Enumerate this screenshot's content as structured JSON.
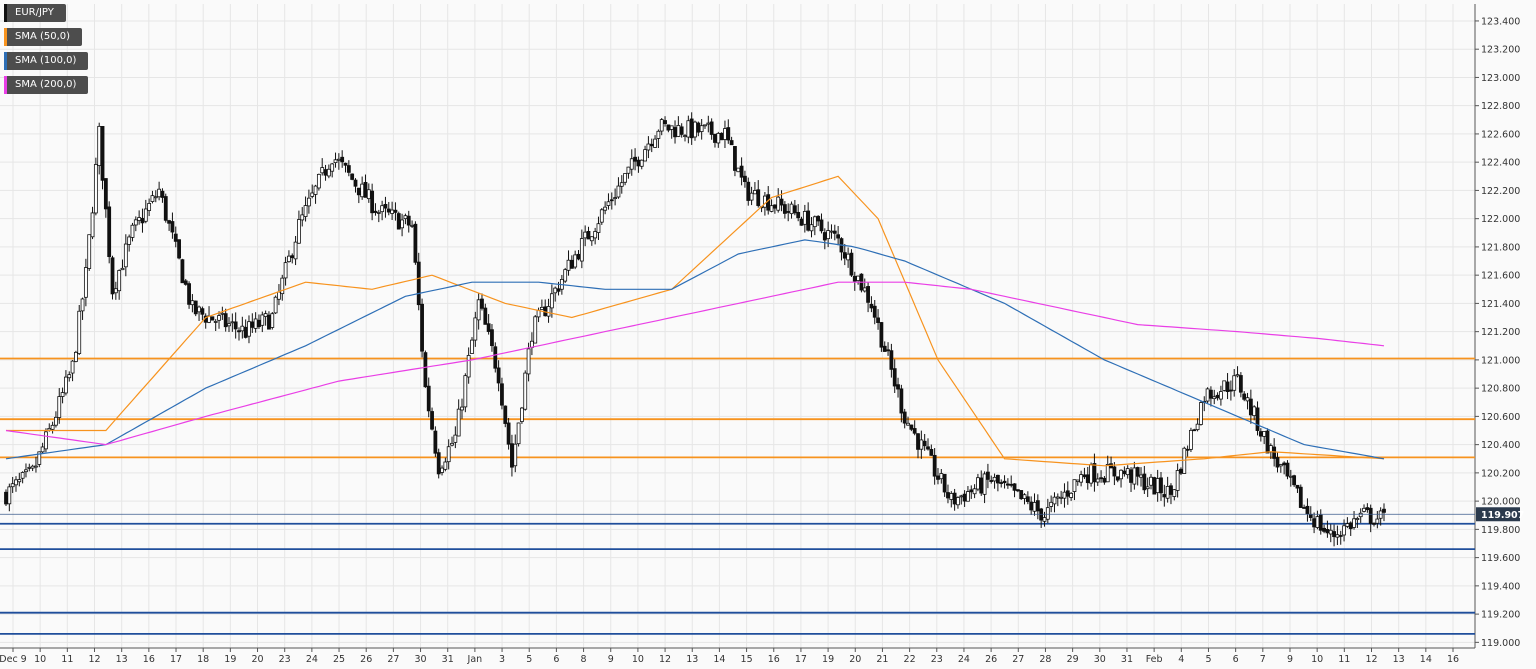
{
  "chart_data": {
    "type": "candlestick",
    "symbol": "EUR/JPY",
    "ylim": [
      118.96,
      123.52
    ],
    "y_ticks": [
      "123.400",
      "123.200",
      "123.000",
      "122.800",
      "122.600",
      "122.400",
      "122.200",
      "122.000",
      "121.800",
      "121.600",
      "121.400",
      "121.200",
      "121.000",
      "120.800",
      "120.600",
      "120.400",
      "120.200",
      "120.000",
      "119.800",
      "119.600",
      "119.400",
      "119.200",
      "119.000"
    ],
    "x_tick_labels": [
      "Dec 9",
      "10",
      "11",
      "12",
      "13",
      "16",
      "17",
      "18",
      "19",
      "20",
      "23",
      "24",
      "25",
      "26",
      "27",
      "30",
      "31",
      "Jan",
      "3",
      "5",
      "6",
      "8",
      "9",
      "10",
      "12",
      "13",
      "14",
      "15",
      "16",
      "17",
      "19",
      "20",
      "21",
      "22",
      "23",
      "24",
      "26",
      "27",
      "28",
      "29",
      "30",
      "31",
      "Feb",
      "4",
      "5",
      "6",
      "7",
      "9",
      "10",
      "11",
      "12",
      "13",
      "14",
      "16"
    ],
    "legend": [
      {
        "name": "EUR/JPY",
        "color": "#111111"
      },
      {
        "name": "SMA (50,0)",
        "color": "#f7931e"
      },
      {
        "name": "SMA (100,0)",
        "color": "#2e6fb6"
      },
      {
        "name": "SMA (200,0)",
        "color": "#e93fe6"
      }
    ],
    "current_price": "119.907",
    "horizontal_levels": [
      {
        "value": 121.01,
        "color": "#f7931e"
      },
      {
        "value": 120.58,
        "color": "#f7931e"
      },
      {
        "value": 120.31,
        "color": "#f7931e"
      },
      {
        "value": 119.84,
        "color": "#1f4e9b"
      },
      {
        "value": 119.66,
        "color": "#1f4e9b"
      },
      {
        "value": 119.21,
        "color": "#1f4e9b"
      },
      {
        "value": 119.06,
        "color": "#1f4e9b"
      }
    ],
    "close_path": [
      [
        0,
        120.05
      ],
      [
        8,
        120.2
      ],
      [
        14,
        120.55
      ],
      [
        20,
        120.95
      ],
      [
        24,
        121.6
      ],
      [
        28,
        122.6
      ],
      [
        32,
        121.5
      ],
      [
        38,
        121.9
      ],
      [
        46,
        122.2
      ],
      [
        56,
        121.35
      ],
      [
        72,
        121.2
      ],
      [
        80,
        121.3
      ],
      [
        88,
        121.95
      ],
      [
        98,
        122.45
      ],
      [
        112,
        122.05
      ],
      [
        122,
        121.95
      ],
      [
        126,
        120.8
      ],
      [
        130,
        120.25
      ],
      [
        135,
        120.45
      ],
      [
        142,
        121.4
      ],
      [
        148,
        120.9
      ],
      [
        152,
        120.25
      ],
      [
        158,
        121.2
      ],
      [
        170,
        121.7
      ],
      [
        182,
        122.15
      ],
      [
        196,
        122.65
      ],
      [
        216,
        122.6
      ],
      [
        222,
        122.2
      ],
      [
        236,
        122.05
      ],
      [
        250,
        121.85
      ],
      [
        260,
        121.4
      ],
      [
        270,
        120.6
      ],
      [
        284,
        120.0
      ],
      [
        296,
        120.15
      ],
      [
        312,
        119.9
      ],
      [
        324,
        120.2
      ],
      [
        336,
        120.2
      ],
      [
        350,
        120.05
      ],
      [
        360,
        120.75
      ],
      [
        370,
        120.85
      ],
      [
        380,
        120.35
      ],
      [
        390,
        119.95
      ],
      [
        398,
        119.75
      ],
      [
        408,
        119.9
      ],
      [
        414,
        119.87
      ]
    ],
    "n_candles": 415,
    "sma50": [
      [
        0,
        120.5
      ],
      [
        30,
        120.5
      ],
      [
        60,
        121.3
      ],
      [
        90,
        121.55
      ],
      [
        110,
        121.5
      ],
      [
        128,
        121.6
      ],
      [
        150,
        121.4
      ],
      [
        170,
        121.3
      ],
      [
        200,
        121.5
      ],
      [
        230,
        122.15
      ],
      [
        250,
        122.3
      ],
      [
        262,
        122.0
      ],
      [
        280,
        121.0
      ],
      [
        300,
        120.3
      ],
      [
        330,
        120.25
      ],
      [
        360,
        120.3
      ],
      [
        380,
        120.35
      ],
      [
        414,
        120.3
      ]
    ],
    "sma100": [
      [
        0,
        120.3
      ],
      [
        30,
        120.4
      ],
      [
        60,
        120.8
      ],
      [
        90,
        121.1
      ],
      [
        120,
        121.45
      ],
      [
        140,
        121.55
      ],
      [
        160,
        121.55
      ],
      [
        180,
        121.5
      ],
      [
        200,
        121.5
      ],
      [
        220,
        121.75
      ],
      [
        240,
        121.85
      ],
      [
        255,
        121.8
      ],
      [
        270,
        121.7
      ],
      [
        300,
        121.4
      ],
      [
        330,
        121.0
      ],
      [
        350,
        120.8
      ],
      [
        370,
        120.6
      ],
      [
        390,
        120.4
      ],
      [
        414,
        120.3
      ]
    ],
    "sma200": [
      [
        0,
        120.5
      ],
      [
        30,
        120.4
      ],
      [
        60,
        120.6
      ],
      [
        100,
        120.85
      ],
      [
        140,
        121.0
      ],
      [
        180,
        121.2
      ],
      [
        220,
        121.4
      ],
      [
        250,
        121.55
      ],
      [
        270,
        121.55
      ],
      [
        290,
        121.5
      ],
      [
        310,
        121.4
      ],
      [
        340,
        121.25
      ],
      [
        370,
        121.2
      ],
      [
        395,
        121.15
      ],
      [
        414,
        121.1
      ]
    ]
  }
}
